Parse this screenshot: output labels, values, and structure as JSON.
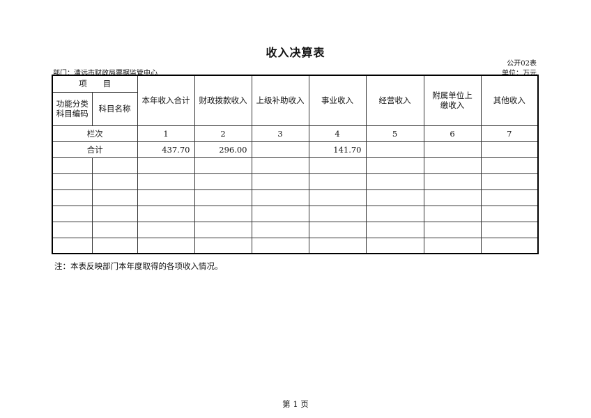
{
  "title": "收入决算表",
  "form_no": "公开02表",
  "department": "部门：清远市财政局票据监管中心",
  "unit": "单位：万元",
  "header": {
    "item": "项　　目",
    "func_code": "功能分类科目编码",
    "subject_name": "科目名称",
    "columns": [
      "本年收入合计",
      "财政拨款收入",
      "上级补助收入",
      "事业收入",
      "经营收入",
      "附属单位上缴收入",
      "其他收入"
    ]
  },
  "column_index": {
    "label": "栏次",
    "numbers": [
      "1",
      "2",
      "3",
      "4",
      "5",
      "6",
      "7"
    ]
  },
  "total_row": {
    "label": "合计",
    "values": [
      "437.70",
      "296.00",
      "",
      "141.70",
      "",
      "",
      ""
    ]
  },
  "empty_rows": 6,
  "note": "注：本表反映部门本年度取得的各项收入情况。",
  "footer": "第 1 页"
}
